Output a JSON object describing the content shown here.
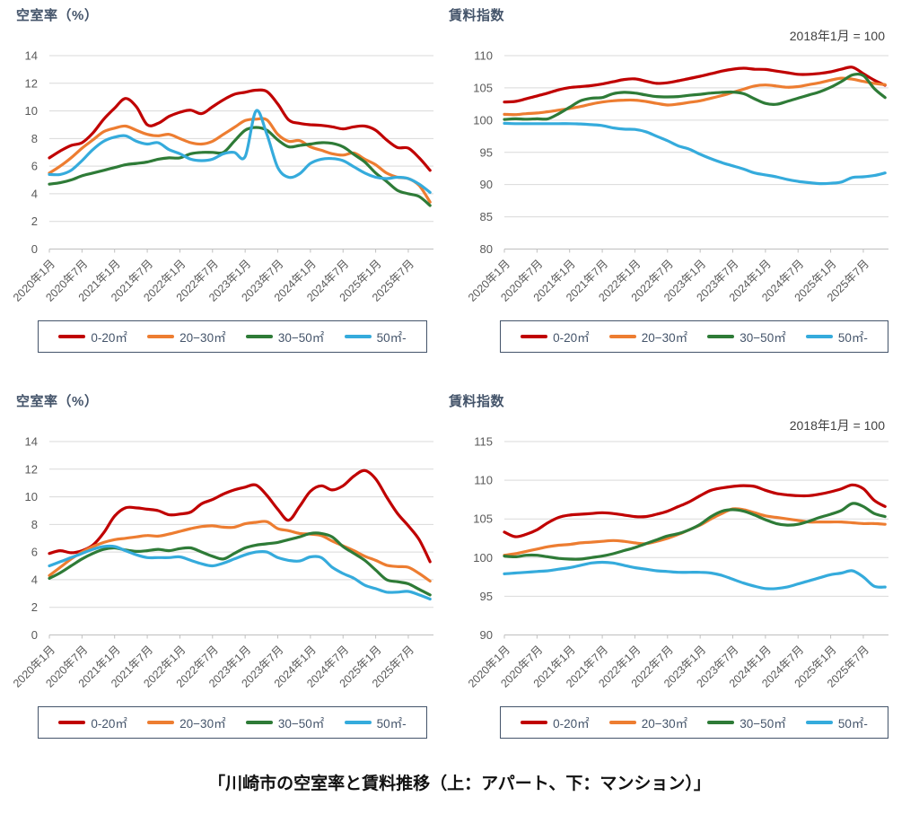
{
  "caption": "「川崎市の空室率と賃料推移（上：アパート、下：マンション）」",
  "x_ticks": [
    "2020年1月",
    "2020年7月",
    "2021年1月",
    "2021年7月",
    "2022年1月",
    "2022年7月",
    "2023年1月",
    "2023年7月",
    "2024年1月",
    "2024年7月",
    "2025年1月",
    "2025年7月"
  ],
  "legend_labels": [
    "0-20㎡",
    "20−30㎡",
    "30−50㎡",
    "50㎡-"
  ],
  "palette": {
    "size_0_20": "#C00000",
    "size_20_30": "#ED7D31",
    "size_30_50": "#2E7B37",
    "size_50_plus": "#35ABDC",
    "grid": "#D9D9D9",
    "axis": "#BFBFBF",
    "tick_label": "#595959",
    "title_text": "#44546A",
    "legend_border": "#44546A"
  },
  "chart_data": [
    {
      "type": "line",
      "property_type": "アパート",
      "metric": "vacancy_rate",
      "title": "空室率（%）",
      "annotation": "",
      "x_start": "2020-01",
      "x_step_months": 2,
      "y": {
        "min": 0,
        "max": 14,
        "ticks": [
          14,
          12,
          10,
          8,
          6,
          4,
          2,
          0
        ]
      },
      "series": [
        {
          "name": "0-20㎡",
          "color_key": "size_0_20",
          "values": [
            6.6,
            7.1,
            7.5,
            7.7,
            8.4,
            9.4,
            10.2,
            10.9,
            10.3,
            9.0,
            9.1,
            9.6,
            9.9,
            10.05,
            9.8,
            10.3,
            10.8,
            11.2,
            11.35,
            11.5,
            11.4,
            10.5,
            9.35,
            9.1,
            9.0,
            8.95,
            8.85,
            8.7,
            8.85,
            8.9,
            8.6,
            7.9,
            7.35,
            7.3,
            6.6,
            5.7
          ]
        },
        {
          "name": "20−30㎡",
          "color_key": "size_20_30",
          "values": [
            5.5,
            6.0,
            6.6,
            7.3,
            7.9,
            8.5,
            8.75,
            8.9,
            8.6,
            8.3,
            8.2,
            8.3,
            8.0,
            7.7,
            7.6,
            7.8,
            8.3,
            8.8,
            9.3,
            9.4,
            9.35,
            8.3,
            7.8,
            7.85,
            7.4,
            7.15,
            6.9,
            6.8,
            6.95,
            6.5,
            6.1,
            5.5,
            5.2,
            5.1,
            4.6,
            3.4
          ]
        },
        {
          "name": "30−50㎡",
          "color_key": "size_30_50",
          "values": [
            4.7,
            4.8,
            5.0,
            5.3,
            5.5,
            5.7,
            5.9,
            6.1,
            6.2,
            6.3,
            6.5,
            6.6,
            6.6,
            6.9,
            7.0,
            7.0,
            7.0,
            7.8,
            8.6,
            8.8,
            8.6,
            7.9,
            7.4,
            7.5,
            7.6,
            7.7,
            7.65,
            7.4,
            6.85,
            6.3,
            5.5,
            4.9,
            4.25,
            4.0,
            3.8,
            3.15
          ]
        },
        {
          "name": "50㎡-",
          "color_key": "size_50_plus",
          "values": [
            5.4,
            5.4,
            5.7,
            6.4,
            7.2,
            7.8,
            8.1,
            8.2,
            7.8,
            7.6,
            7.7,
            7.2,
            6.9,
            6.5,
            6.4,
            6.5,
            6.9,
            7.0,
            6.7,
            10.0,
            8.3,
            5.9,
            5.2,
            5.45,
            6.2,
            6.5,
            6.55,
            6.4,
            5.95,
            5.5,
            5.2,
            5.1,
            5.2,
            5.1,
            4.7,
            4.1
          ]
        }
      ]
    },
    {
      "type": "line",
      "property_type": "アパート",
      "metric": "rent_index",
      "title": "賃料指数",
      "annotation": "2018年1月 = 100",
      "x_start": "2020-01",
      "x_step_months": 2,
      "y": {
        "min": 80,
        "max": 110,
        "ticks": [
          110,
          105,
          100,
          95,
          90,
          85,
          80
        ]
      },
      "series": [
        {
          "name": "0-20㎡",
          "color_key": "size_0_20",
          "values": [
            102.8,
            102.9,
            103.3,
            103.75,
            104.2,
            104.7,
            105.05,
            105.2,
            105.35,
            105.6,
            105.95,
            106.3,
            106.4,
            106.05,
            105.7,
            105.8,
            106.1,
            106.45,
            106.8,
            107.2,
            107.6,
            107.9,
            108.05,
            107.9,
            107.85,
            107.6,
            107.35,
            107.1,
            107.1,
            107.25,
            107.5,
            107.9,
            108.2,
            107.2,
            106.2,
            105.4
          ]
        },
        {
          "name": "20−30㎡",
          "color_key": "size_20_30",
          "values": [
            100.9,
            100.85,
            101.0,
            101.1,
            101.3,
            101.55,
            101.8,
            102.1,
            102.5,
            102.8,
            103.0,
            103.1,
            103.1,
            102.9,
            102.6,
            102.35,
            102.5,
            102.75,
            103.0,
            103.4,
            103.8,
            104.3,
            104.8,
            105.3,
            105.45,
            105.3,
            105.1,
            105.2,
            105.5,
            105.8,
            106.2,
            106.5,
            106.35,
            106.0,
            105.7,
            105.5
          ]
        },
        {
          "name": "30−50㎡",
          "color_key": "size_30_50",
          "values": [
            100.1,
            100.2,
            100.15,
            100.2,
            100.2,
            101.0,
            102.0,
            103.0,
            103.4,
            103.5,
            104.1,
            104.3,
            104.2,
            103.9,
            103.65,
            103.6,
            103.65,
            103.85,
            104.0,
            104.2,
            104.3,
            104.35,
            104.1,
            103.3,
            102.6,
            102.45,
            102.9,
            103.4,
            103.9,
            104.4,
            105.1,
            106.0,
            107.0,
            106.9,
            104.9,
            103.5
          ]
        },
        {
          "name": "50㎡-",
          "color_key": "size_50_plus",
          "values": [
            99.5,
            99.45,
            99.45,
            99.45,
            99.45,
            99.45,
            99.45,
            99.4,
            99.3,
            99.15,
            98.8,
            98.6,
            98.55,
            98.2,
            97.5,
            96.8,
            96.0,
            95.5,
            94.7,
            94.0,
            93.4,
            92.9,
            92.4,
            91.8,
            91.5,
            91.2,
            90.8,
            90.5,
            90.3,
            90.15,
            90.2,
            90.4,
            91.1,
            91.2,
            91.4,
            91.8
          ]
        }
      ]
    },
    {
      "type": "line",
      "property_type": "マンション",
      "metric": "vacancy_rate",
      "title": "空室率（%）",
      "annotation": "",
      "x_start": "2020-01",
      "x_step_months": 2,
      "y": {
        "min": 0,
        "max": 14,
        "ticks": [
          14,
          12,
          10,
          8,
          6,
          4,
          2,
          0
        ]
      },
      "series": [
        {
          "name": "0-20㎡",
          "color_key": "size_0_20",
          "values": [
            5.9,
            6.1,
            5.95,
            6.1,
            6.5,
            7.4,
            8.6,
            9.2,
            9.2,
            9.1,
            9.0,
            8.7,
            8.75,
            8.9,
            9.5,
            9.8,
            10.2,
            10.5,
            10.7,
            10.85,
            10.1,
            9.1,
            8.3,
            9.3,
            10.4,
            10.8,
            10.5,
            10.8,
            11.5,
            11.9,
            11.3,
            10.0,
            8.8,
            7.9,
            6.9,
            5.3
          ]
        },
        {
          "name": "20−30㎡",
          "color_key": "size_20_30",
          "values": [
            4.3,
            4.9,
            5.5,
            6.0,
            6.4,
            6.7,
            6.9,
            7.0,
            7.1,
            7.2,
            7.15,
            7.3,
            7.5,
            7.7,
            7.85,
            7.9,
            7.8,
            7.8,
            8.05,
            8.15,
            8.2,
            7.7,
            7.55,
            7.35,
            7.3,
            7.2,
            6.8,
            6.45,
            6.1,
            5.7,
            5.4,
            5.05,
            4.95,
            4.9,
            4.45,
            3.9
          ]
        },
        {
          "name": "30−50㎡",
          "color_key": "size_30_50",
          "values": [
            4.1,
            4.5,
            5.0,
            5.5,
            5.9,
            6.2,
            6.3,
            6.15,
            6.05,
            6.1,
            6.2,
            6.1,
            6.25,
            6.3,
            6.0,
            5.7,
            5.5,
            5.9,
            6.3,
            6.5,
            6.6,
            6.7,
            6.9,
            7.1,
            7.35,
            7.35,
            7.1,
            6.4,
            5.9,
            5.4,
            4.7,
            4.0,
            3.85,
            3.7,
            3.3,
            2.9
          ]
        },
        {
          "name": "50㎡-",
          "color_key": "size_50_plus",
          "values": [
            5.0,
            5.3,
            5.6,
            5.9,
            6.2,
            6.4,
            6.4,
            6.1,
            5.8,
            5.6,
            5.6,
            5.6,
            5.65,
            5.4,
            5.15,
            5.0,
            5.2,
            5.5,
            5.8,
            6.0,
            6.0,
            5.6,
            5.4,
            5.35,
            5.65,
            5.6,
            4.9,
            4.45,
            4.1,
            3.6,
            3.35,
            3.1,
            3.1,
            3.15,
            2.9,
            2.6
          ]
        }
      ]
    },
    {
      "type": "line",
      "property_type": "マンション",
      "metric": "rent_index",
      "title": "賃料指数",
      "annotation": "2018年1月 = 100",
      "x_start": "2020-01",
      "x_step_months": 2,
      "y": {
        "min": 90,
        "max": 115,
        "ticks": [
          115,
          110,
          105,
          100,
          95,
          90
        ]
      },
      "series": [
        {
          "name": "0-20㎡",
          "color_key": "size_0_20",
          "values": [
            103.3,
            102.7,
            103.0,
            103.6,
            104.5,
            105.2,
            105.5,
            105.6,
            105.7,
            105.8,
            105.7,
            105.5,
            105.3,
            105.3,
            105.6,
            106.0,
            106.6,
            107.2,
            108.0,
            108.7,
            109.0,
            109.2,
            109.3,
            109.2,
            108.7,
            108.3,
            108.1,
            108.0,
            108.0,
            108.2,
            108.5,
            108.9,
            109.4,
            108.9,
            107.4,
            106.6
          ]
        },
        {
          "name": "20−30㎡",
          "color_key": "size_20_30",
          "values": [
            100.3,
            100.5,
            100.8,
            101.1,
            101.4,
            101.6,
            101.7,
            101.9,
            102.0,
            102.1,
            102.2,
            102.1,
            101.9,
            101.8,
            102.1,
            102.5,
            103.0,
            103.6,
            104.2,
            105.0,
            105.7,
            106.3,
            106.2,
            105.8,
            105.4,
            105.2,
            105.0,
            104.8,
            104.6,
            104.6,
            104.6,
            104.6,
            104.5,
            104.4,
            104.4,
            104.3
          ]
        },
        {
          "name": "30−50㎡",
          "color_key": "size_30_50",
          "values": [
            100.2,
            100.1,
            100.3,
            100.3,
            100.1,
            99.9,
            99.8,
            99.8,
            100.0,
            100.2,
            100.5,
            100.9,
            101.3,
            101.8,
            102.3,
            102.8,
            103.1,
            103.6,
            104.3,
            105.3,
            106.0,
            106.2,
            106.0,
            105.5,
            104.9,
            104.4,
            104.2,
            104.3,
            104.7,
            105.2,
            105.6,
            106.1,
            107.0,
            106.6,
            105.7,
            105.3
          ]
        },
        {
          "name": "50㎡-",
          "color_key": "size_50_plus",
          "values": [
            97.9,
            98.0,
            98.1,
            98.2,
            98.3,
            98.5,
            98.7,
            99.0,
            99.3,
            99.4,
            99.3,
            99.0,
            98.7,
            98.5,
            98.3,
            98.2,
            98.1,
            98.1,
            98.1,
            98.0,
            97.7,
            97.2,
            96.7,
            96.3,
            96.0,
            96.0,
            96.2,
            96.6,
            97.0,
            97.4,
            97.8,
            98.0,
            98.3,
            97.5,
            96.3,
            96.2
          ]
        }
      ]
    }
  ]
}
